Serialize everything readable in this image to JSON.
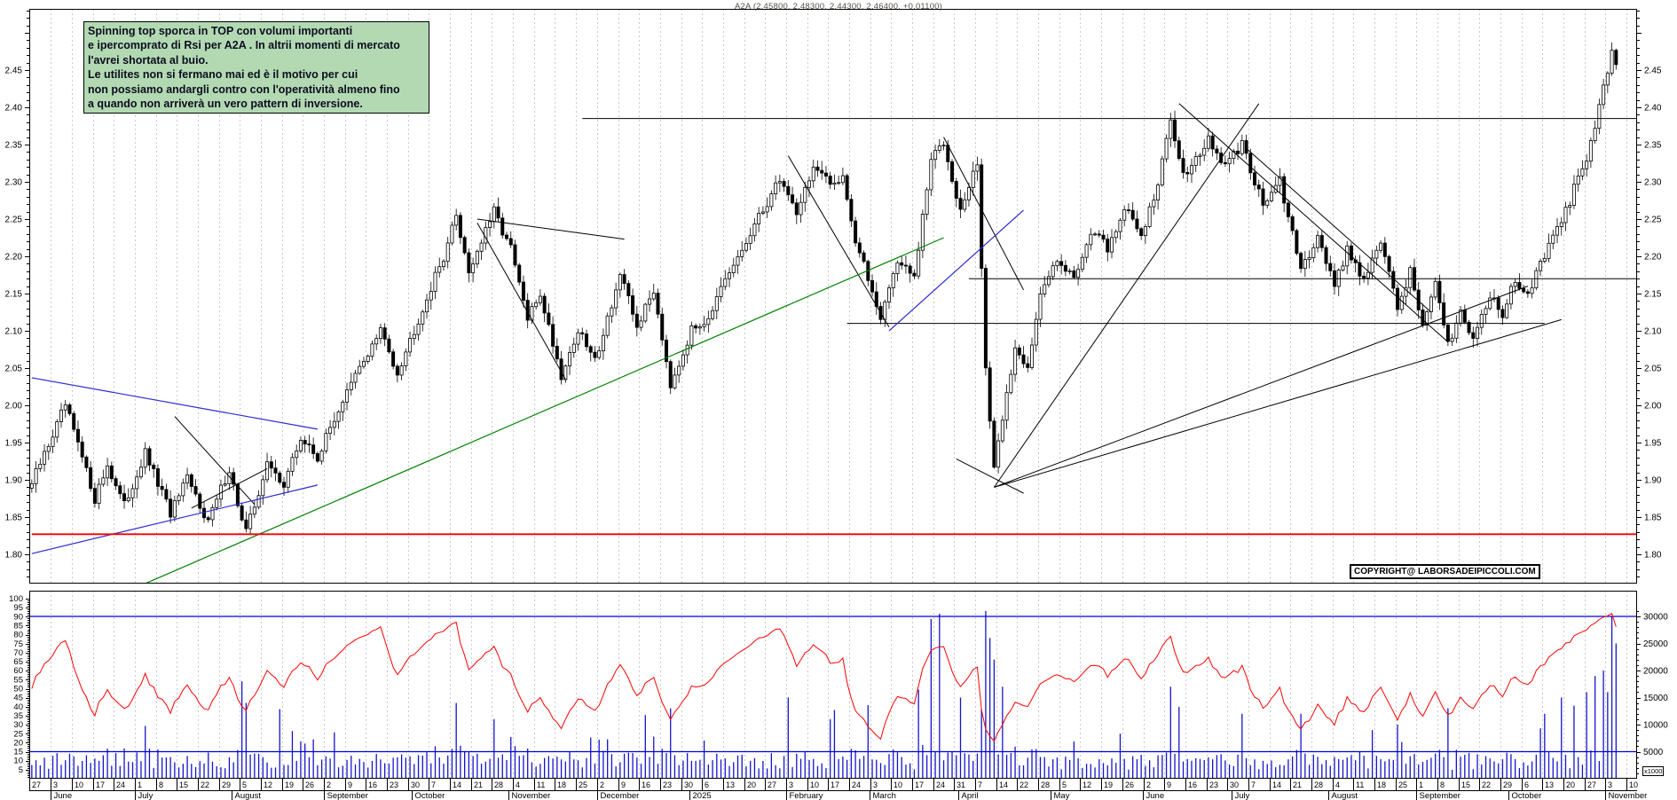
{
  "header": {
    "title": "A2A (2.45800, 2.48300, 2.44300, 2.46400, +0.01100)"
  },
  "annotation": {
    "text": "Spinning top sporca in TOP con volumi importanti\ne ipercomprato di Rsi per A2A . In altrii momenti di mercato\nl'avrei shortata al buio.\nLe utilites non si fermano mai ed è il motivo per cui\nnon possiamo andargli contro con l'operatività almeno fino\na quando non arriverà un vero pattern di inversione."
  },
  "copyright": {
    "label": "COPYRIGHT@ LABORSADEIPICCOLI.COM"
  },
  "volume_unit": {
    "label": "x1000"
  },
  "colors": {
    "candle_up_fill": "#ffffff",
    "candle_down_fill": "#000000",
    "candle_stroke": "#000000",
    "volume_bar": "#1414cc",
    "rsi_line": "#ff0000",
    "red_hline": "#ff0000",
    "blue_line": "#2a2ad2",
    "green_line": "#008000",
    "grid_dash": "#c9c9c9",
    "annotation_bg": "#b2d9b2",
    "axis_text": "#000000"
  },
  "axes": {
    "price_labels": [
      "1.80",
      "1.85",
      "1.90",
      "1.95",
      "2.00",
      "2.05",
      "2.10",
      "2.15",
      "2.20",
      "2.25",
      "2.30",
      "2.35",
      "2.40",
      "2.45"
    ],
    "rsi_labels": [
      "5",
      "10",
      "15",
      "20",
      "25",
      "30",
      "35",
      "40",
      "45",
      "50",
      "55",
      "60",
      "65",
      "70",
      "75",
      "80",
      "85",
      "90",
      "95",
      "100"
    ],
    "volume_labels": [
      "5000",
      "10000",
      "15000",
      "20000",
      "25000",
      "30000"
    ],
    "week_labels": [
      "27",
      "3",
      "10",
      "17",
      "24",
      "1",
      "8",
      "15",
      "22",
      "29",
      "5",
      "12",
      "19",
      "26",
      "2",
      "9",
      "16",
      "23",
      "30",
      "7",
      "14",
      "21",
      "28",
      "4",
      "11",
      "18",
      "25",
      "2",
      "9",
      "16",
      "23",
      "30",
      "6",
      "13",
      "20",
      "27",
      "3",
      "10",
      "17",
      "24",
      "3",
      "10",
      "17",
      "24",
      "31",
      "7",
      "14",
      "22",
      "28",
      "5",
      "12",
      "19",
      "26",
      "2",
      "9",
      "16",
      "23",
      "30",
      "7",
      "14",
      "21",
      "28",
      "4",
      "11",
      "18",
      "25",
      "1",
      "8",
      "15",
      "22",
      "29",
      "6",
      "13",
      "20",
      "27",
      "3",
      "10"
    ],
    "months": [
      {
        "label": "June",
        "start": 5
      },
      {
        "label": "July",
        "start": 25
      },
      {
        "label": "August",
        "start": 48
      },
      {
        "label": "September",
        "start": 70
      },
      {
        "label": "October",
        "start": 91
      },
      {
        "label": "November",
        "start": 114
      },
      {
        "label": "December",
        "start": 135
      },
      {
        "label": "2025",
        "start": 157
      },
      {
        "label": "February",
        "start": 180
      },
      {
        "label": "March",
        "start": 200
      },
      {
        "label": "April",
        "start": 221
      },
      {
        "label": "May",
        "start": 243
      },
      {
        "label": "June",
        "start": 265
      },
      {
        "label": "July",
        "start": 286
      },
      {
        "label": "August",
        "start": 309
      },
      {
        "label": "September",
        "start": 330
      },
      {
        "label": "October",
        "start": 352
      },
      {
        "label": "November",
        "start": 375
      }
    ]
  },
  "chart_data": {
    "type": "candlestick",
    "symbol": "A2A",
    "title": "A2A (2.45800, 2.48300, 2.44300, 2.46400, +0.01100)",
    "quote": {
      "open": 2.458,
      "high": 2.483,
      "low": 2.443,
      "close": 2.464,
      "change": 0.011
    },
    "price_axis_range": [
      1.762,
      2.53
    ],
    "price_label_step": 0.05,
    "rsi_axis_range": [
      0,
      100
    ],
    "rsi_period": 14,
    "volume_axis_ticks": [
      5000,
      10000,
      15000,
      20000,
      25000,
      30000
    ],
    "days_total": 378,
    "axis_days_total": 382,
    "grid": "weekly-dashed",
    "close_anchors": [
      [
        0,
        1.895
      ],
      [
        8,
        2.0
      ],
      [
        15,
        1.875
      ],
      [
        18,
        1.92
      ],
      [
        22,
        1.865
      ],
      [
        27,
        1.935
      ],
      [
        33,
        1.855
      ],
      [
        37,
        1.9
      ],
      [
        42,
        1.845
      ],
      [
        47,
        1.915
      ],
      [
        50,
        1.845
      ],
      [
        51,
        1.83
      ],
      [
        56,
        1.92
      ],
      [
        60,
        1.895
      ],
      [
        64,
        1.955
      ],
      [
        68,
        1.93
      ],
      [
        73,
        1.995
      ],
      [
        78,
        2.05
      ],
      [
        83,
        2.1
      ],
      [
        87,
        2.045
      ],
      [
        93,
        2.13
      ],
      [
        98,
        2.2
      ],
      [
        101,
        2.255
      ],
      [
        104,
        2.18
      ],
      [
        110,
        2.26
      ],
      [
        114,
        2.21
      ],
      [
        118,
        2.115
      ],
      [
        121,
        2.15
      ],
      [
        126,
        2.04
      ],
      [
        130,
        2.1
      ],
      [
        134,
        2.06
      ],
      [
        140,
        2.175
      ],
      [
        144,
        2.105
      ],
      [
        148,
        2.155
      ],
      [
        152,
        2.03
      ],
      [
        157,
        2.1
      ],
      [
        161,
        2.12
      ],
      [
        166,
        2.175
      ],
      [
        172,
        2.24
      ],
      [
        178,
        2.305
      ],
      [
        182,
        2.26
      ],
      [
        186,
        2.32
      ],
      [
        190,
        2.295
      ],
      [
        193,
        2.31
      ],
      [
        196,
        2.22
      ],
      [
        202,
        2.12
      ],
      [
        206,
        2.195
      ],
      [
        210,
        2.17
      ],
      [
        214,
        2.33
      ],
      [
        217,
        2.355
      ],
      [
        221,
        2.26
      ],
      [
        225,
        2.325
      ],
      [
        227,
        2.05
      ],
      [
        229,
        1.91
      ],
      [
        231,
        1.985
      ],
      [
        234,
        2.075
      ],
      [
        237,
        2.055
      ],
      [
        240,
        2.145
      ],
      [
        244,
        2.2
      ],
      [
        248,
        2.17
      ],
      [
        252,
        2.235
      ],
      [
        256,
        2.21
      ],
      [
        260,
        2.265
      ],
      [
        264,
        2.23
      ],
      [
        268,
        2.295
      ],
      [
        271,
        2.385
      ],
      [
        274,
        2.31
      ],
      [
        280,
        2.355
      ],
      [
        284,
        2.32
      ],
      [
        288,
        2.35
      ],
      [
        293,
        2.27
      ],
      [
        297,
        2.3
      ],
      [
        302,
        2.18
      ],
      [
        306,
        2.23
      ],
      [
        310,
        2.16
      ],
      [
        313,
        2.21
      ],
      [
        317,
        2.17
      ],
      [
        321,
        2.22
      ],
      [
        325,
        2.13
      ],
      [
        328,
        2.18
      ],
      [
        331,
        2.11
      ],
      [
        334,
        2.16
      ],
      [
        337,
        2.08
      ],
      [
        340,
        2.13
      ],
      [
        343,
        2.09
      ],
      [
        347,
        2.15
      ],
      [
        350,
        2.12
      ],
      [
        353,
        2.17
      ],
      [
        356,
        2.15
      ],
      [
        360,
        2.2
      ],
      [
        364,
        2.245
      ],
      [
        367,
        2.29
      ],
      [
        370,
        2.33
      ],
      [
        372,
        2.375
      ],
      [
        374,
        2.43
      ],
      [
        376,
        2.47
      ],
      [
        377,
        2.464
      ]
    ],
    "volume_spikes": [
      [
        50,
        18000
      ],
      [
        51,
        14000
      ],
      [
        101,
        14000
      ],
      [
        110,
        11000
      ],
      [
        152,
        13000
      ],
      [
        180,
        15000
      ],
      [
        190,
        11000
      ],
      [
        214,
        29500
      ],
      [
        216,
        30500
      ],
      [
        221,
        15000
      ],
      [
        227,
        31000
      ],
      [
        228,
        26000
      ],
      [
        229,
        22000
      ],
      [
        231,
        17000
      ],
      [
        271,
        17000
      ],
      [
        288,
        12000
      ],
      [
        302,
        12000
      ],
      [
        325,
        10000
      ],
      [
        337,
        13000
      ],
      [
        360,
        12000
      ],
      [
        364,
        15000
      ],
      [
        367,
        13500
      ],
      [
        370,
        16000
      ],
      [
        372,
        19000
      ],
      [
        374,
        20000
      ],
      [
        375,
        16000
      ],
      [
        376,
        30000
      ],
      [
        377,
        25000
      ]
    ],
    "volume_hlines": [
      30000,
      5000
    ],
    "price_hline_red": 1.827,
    "overlay_lines": [
      {
        "color": "black",
        "w": 1,
        "pts": [
          [
            131,
            2.385
          ],
          [
            382,
            2.385
          ]
        ]
      },
      {
        "color": "black",
        "w": 1,
        "pts": [
          [
            223,
            2.17
          ],
          [
            382,
            2.17
          ]
        ]
      },
      {
        "color": "black",
        "w": 1,
        "pts": [
          [
            194,
            2.11
          ],
          [
            360,
            2.11
          ]
        ]
      },
      {
        "color": "black",
        "w": 1,
        "pts": [
          [
            34,
            1.985
          ],
          [
            53,
            1.867
          ]
        ]
      },
      {
        "color": "black",
        "w": 1,
        "pts": [
          [
            38,
            1.862
          ],
          [
            56,
            1.915
          ]
        ]
      },
      {
        "color": "black",
        "w": 1,
        "pts": [
          [
            106,
            2.25
          ],
          [
            141,
            2.223
          ]
        ]
      },
      {
        "color": "black",
        "w": 1,
        "pts": [
          [
            106,
            2.245
          ],
          [
            127,
            2.035
          ]
        ]
      },
      {
        "color": "black",
        "w": 1,
        "pts": [
          [
            180,
            2.335
          ],
          [
            204,
            2.105
          ]
        ]
      },
      {
        "color": "black",
        "w": 1,
        "pts": [
          [
            217,
            2.36
          ],
          [
            236,
            2.155
          ]
        ]
      },
      {
        "color": "black",
        "w": 1,
        "pts": [
          [
            229,
            1.89
          ],
          [
            292,
            2.405
          ]
        ]
      },
      {
        "color": "black",
        "w": 1,
        "pts": [
          [
            229,
            1.89
          ],
          [
            356,
            2.16
          ]
        ]
      },
      {
        "color": "black",
        "w": 1,
        "pts": [
          [
            229,
            1.89
          ],
          [
            364,
            2.115
          ]
        ]
      },
      {
        "color": "black",
        "w": 1,
        "pts": [
          [
            220,
            1.928
          ],
          [
            236,
            1.882
          ]
        ]
      },
      {
        "color": "black",
        "w": 1,
        "pts": [
          [
            273,
            2.405
          ],
          [
            337,
            2.085
          ]
        ]
      },
      {
        "color": "black",
        "w": 1,
        "pts": [
          [
            289,
            2.345
          ],
          [
            333,
            2.125
          ]
        ]
      },
      {
        "color": "blue",
        "w": 1.2,
        "pts": [
          [
            0,
            2.037
          ],
          [
            68,
            1.968
          ]
        ]
      },
      {
        "color": "blue",
        "w": 1.2,
        "pts": [
          [
            0,
            1.801
          ],
          [
            68,
            1.893
          ]
        ]
      },
      {
        "color": "blue",
        "w": 1.2,
        "pts": [
          [
            204,
            2.1
          ],
          [
            236,
            2.262
          ]
        ]
      },
      {
        "color": "green",
        "w": 1.2,
        "pts": [
          [
            23,
            1.751
          ],
          [
            217,
            2.225
          ]
        ]
      },
      {
        "color": "red",
        "w": 1.8,
        "pts": [
          [
            0,
            1.827
          ],
          [
            382,
            1.827
          ]
        ]
      }
    ]
  }
}
